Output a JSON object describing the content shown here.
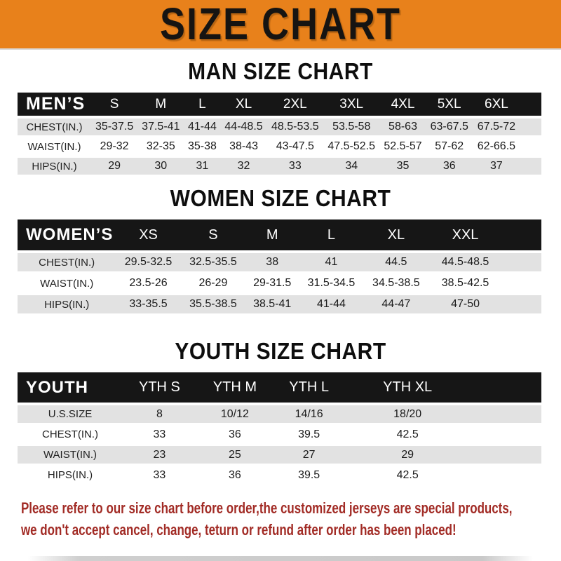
{
  "banner": {
    "title": "SIZE CHART"
  },
  "colors": {
    "banner_bg": "#E8811B",
    "table_header_bg": "#161616",
    "table_header_text": "#FFFFFF",
    "row_gray": "#E2E2E2",
    "row_white": "#FFFFFF",
    "footer_red": "#A22C26",
    "heading_black": "#0E0E0E"
  },
  "sections": [
    {
      "heading": "MAN SIZE CHART",
      "group_label": "MEN’S",
      "columns": [
        "S",
        "M",
        "L",
        "XL",
        "2XL",
        "3XL",
        "4XL",
        "5XL",
        "6XL"
      ],
      "rows": [
        {
          "label": "CHEST(IN.)",
          "values": [
            "35-37.5",
            "37.5-41",
            "41-44",
            "44-48.5",
            "48.5-53.5",
            "53.5-58",
            "58-63",
            "63-67.5",
            "67.5-72"
          ]
        },
        {
          "label": "WAIST(IN.)",
          "values": [
            "29-32",
            "32-35",
            "35-38",
            "38-43",
            "43-47.5",
            "47.5-52.5",
            "52.5-57",
            "57-62",
            "62-66.5"
          ]
        },
        {
          "label": "HIPS(IN.)",
          "values": [
            "29",
            "30",
            "31",
            "32",
            "33",
            "34",
            "35",
            "36",
            "37"
          ]
        }
      ]
    },
    {
      "heading": "WOMEN SIZE CHART",
      "group_label": "WOMEN’S",
      "columns": [
        "XS",
        "S",
        "M",
        "L",
        "XL",
        "XXL"
      ],
      "rows": [
        {
          "label": "CHEST(IN.)",
          "values": [
            "29.5-32.5",
            "32.5-35.5",
            "38",
            "41",
            "44.5",
            "44.5-48.5"
          ]
        },
        {
          "label": "WAIST(IN.)",
          "values": [
            "23.5-26",
            "26-29",
            "29-31.5",
            "31.5-34.5",
            "34.5-38.5",
            "38.5-42.5"
          ]
        },
        {
          "label": "HIPS(IN.)",
          "values": [
            "33-35.5",
            "35.5-38.5",
            "38.5-41",
            "41-44",
            "44-47",
            "47-50"
          ]
        }
      ]
    },
    {
      "heading": "YOUTH SIZE CHART",
      "group_label": "YOUTH",
      "columns": [
        "YTH S",
        "YTH M",
        "YTH L",
        "YTH XL"
      ],
      "rows": [
        {
          "label": "U.S.SIZE",
          "values": [
            "8",
            "10/12",
            "14/16",
            "18/20"
          ]
        },
        {
          "label": "CHEST(IN.)",
          "values": [
            "33",
            "36",
            "39.5",
            "42.5"
          ]
        },
        {
          "label": "WAIST(IN.)",
          "values": [
            "23",
            "25",
            "27",
            "29"
          ]
        },
        {
          "label": "HIPS(IN.)",
          "values": [
            "33",
            "36",
            "39.5",
            "42.5"
          ]
        }
      ]
    }
  ],
  "footer": {
    "line1": "Please refer to our size chart before order,the customized jerseys are special products,",
    "line2": "we don't accept cancel, change, teturn or refund after order has been placed!"
  }
}
